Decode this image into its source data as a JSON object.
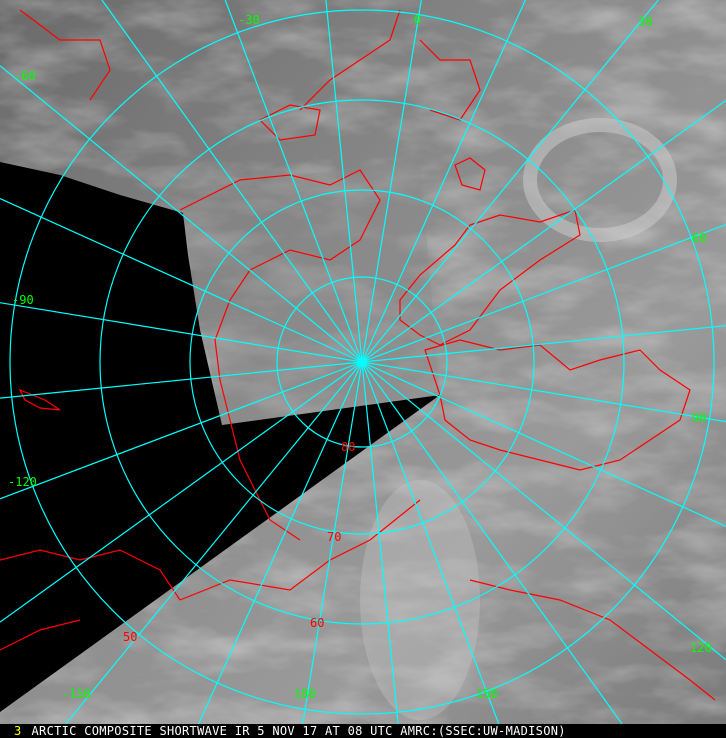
{
  "caption": {
    "frame_number": "3",
    "text": "ARCTIC COMPOSITE SHORTWAVE IR 5 NOV 17 AT 08 UTC AMRC:(SSEC:UW-MADISON)"
  },
  "longitude_labels": [
    "-30",
    "0",
    "30",
    "-60",
    "60",
    "-90",
    "90",
    "-120",
    "120",
    "-150",
    "150",
    "180"
  ],
  "latitude_labels": [
    "80",
    "70",
    "60",
    "50"
  ],
  "colors": {
    "graticule": "#00ffff",
    "coastline": "#ff0000",
    "longitude_label": "#00ff00",
    "latitude_label": "#ff0000",
    "no_data": "#000000",
    "frame_number": "#ffff00",
    "caption_text": "#ffffff"
  }
}
